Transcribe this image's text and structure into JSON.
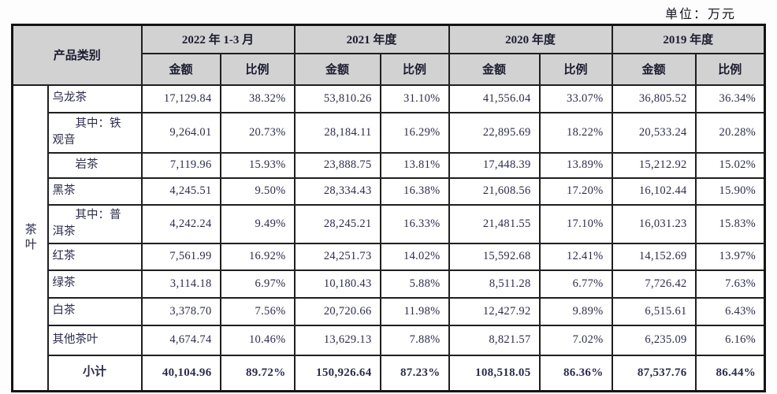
{
  "unit_label": "单位：万元",
  "colors": {
    "header_bg": "#d2d2d2",
    "border": "#1f1f1f",
    "text": "#2c2c4e",
    "page_bg": "#fdfdfd"
  },
  "table": {
    "category_header": "产品类别",
    "group_label": "茶叶",
    "periods": [
      "2022 年 1-3 月",
      "2021 年度",
      "2020 年度",
      "2019 年度"
    ],
    "sub_headers": {
      "amount": "金额",
      "ratio": "比例"
    },
    "rows": [
      {
        "label": "乌龙茶",
        "indent": false,
        "subtotal": false,
        "values": [
          "17,129.84",
          "38.32%",
          "53,810.26",
          "31.10%",
          "41,556.04",
          "33.07%",
          "36,805.52",
          "36.34%"
        ]
      },
      {
        "label": "其中：铁观音",
        "indent": true,
        "subtotal": false,
        "values": [
          "9,264.01",
          "20.73%",
          "28,184.11",
          "16.29%",
          "22,895.69",
          "18.22%",
          "20,533.24",
          "20.28%"
        ]
      },
      {
        "label": "岩茶",
        "indent": true,
        "subtotal": false,
        "values": [
          "7,119.96",
          "15.93%",
          "23,888.75",
          "13.81%",
          "17,448.39",
          "13.89%",
          "15,212.92",
          "15.02%"
        ]
      },
      {
        "label": "黑茶",
        "indent": false,
        "subtotal": false,
        "values": [
          "4,245.51",
          "9.50%",
          "28,334.43",
          "16.38%",
          "21,608.56",
          "17.20%",
          "16,102.44",
          "15.90%"
        ]
      },
      {
        "label": "其中：普洱茶",
        "indent": true,
        "subtotal": false,
        "values": [
          "4,242.24",
          "9.49%",
          "28,245.21",
          "16.33%",
          "21,481.55",
          "17.10%",
          "16,031.23",
          "15.83%"
        ]
      },
      {
        "label": "红茶",
        "indent": false,
        "subtotal": false,
        "values": [
          "7,561.99",
          "16.92%",
          "24,251.73",
          "14.02%",
          "15,592.68",
          "12.41%",
          "14,152.69",
          "13.97%"
        ]
      },
      {
        "label": "绿茶",
        "indent": false,
        "subtotal": false,
        "values": [
          "3,114.18",
          "6.97%",
          "10,180.43",
          "5.88%",
          "8,511.28",
          "6.77%",
          "7,726.42",
          "7.63%"
        ]
      },
      {
        "label": "白茶",
        "indent": false,
        "subtotal": false,
        "values": [
          "3,378.70",
          "7.56%",
          "20,720.66",
          "11.98%",
          "12,427.92",
          "9.89%",
          "6,515.61",
          "6.43%"
        ]
      },
      {
        "label": "其他茶叶",
        "indent": false,
        "subtotal": false,
        "values": [
          "4,674.74",
          "10.46%",
          "13,629.13",
          "7.88%",
          "8,821.57",
          "7.02%",
          "6,235.09",
          "6.16%"
        ]
      },
      {
        "label": "小计",
        "indent": false,
        "subtotal": true,
        "values": [
          "40,104.96",
          "89.72%",
          "150,926.64",
          "87.23%",
          "108,518.05",
          "86.36%",
          "87,537.76",
          "86.44%"
        ]
      }
    ]
  }
}
